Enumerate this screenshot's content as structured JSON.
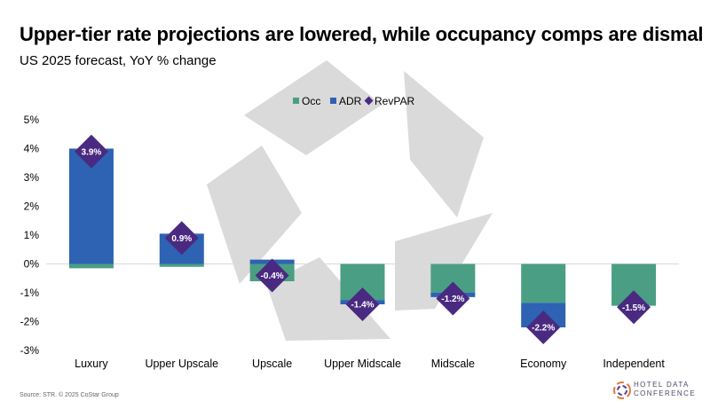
{
  "header": {
    "title": "Upper-tier rate projections are lowered, while occupancy comps are dismal",
    "subtitle": "US 2025 forecast, YoY % change"
  },
  "footer": {
    "source": "Source: STR. © 2025 CoStar Group",
    "brand_line1": "HOTEL DATA",
    "brand_line2": "CONFERENCE"
  },
  "colors": {
    "occ": "#4a9e84",
    "adr": "#2e62b3",
    "revpar": "#4a2a80",
    "watermark": "#d3d3d3",
    "axis": "#d9d9d9"
  },
  "chart_data": {
    "type": "bar",
    "stacked": true,
    "categories": [
      "Luxury",
      "Upper Upscale",
      "Upscale",
      "Upper Midscale",
      "Midscale",
      "Economy",
      "Independent"
    ],
    "series": [
      {
        "name": "Occ",
        "type": "bar",
        "values": [
          -0.15,
          -0.1,
          -0.6,
          -1.25,
          -1.0,
          -1.35,
          -1.45
        ]
      },
      {
        "name": "ADR",
        "type": "bar",
        "values": [
          4.0,
          1.05,
          0.15,
          -0.15,
          -0.15,
          -0.85,
          0.0
        ]
      },
      {
        "name": "RevPAR",
        "type": "marker",
        "values": [
          3.9,
          0.9,
          -0.4,
          -1.4,
          -1.2,
          -2.2,
          -1.5
        ],
        "labels": [
          "3.9%",
          "0.9%",
          "-0.4%",
          "-1.4%",
          "-1.2%",
          "-2.2%",
          "-1.5%"
        ]
      }
    ],
    "yticks": [
      "5%",
      "4%",
      "3%",
      "2%",
      "1%",
      "0%",
      "-1%",
      "-2%",
      "-3%"
    ],
    "ylim": [
      -3,
      5
    ],
    "legend": {
      "position": "top",
      "items": [
        "Occ",
        "ADR",
        "RevPAR"
      ]
    },
    "grid": false
  }
}
